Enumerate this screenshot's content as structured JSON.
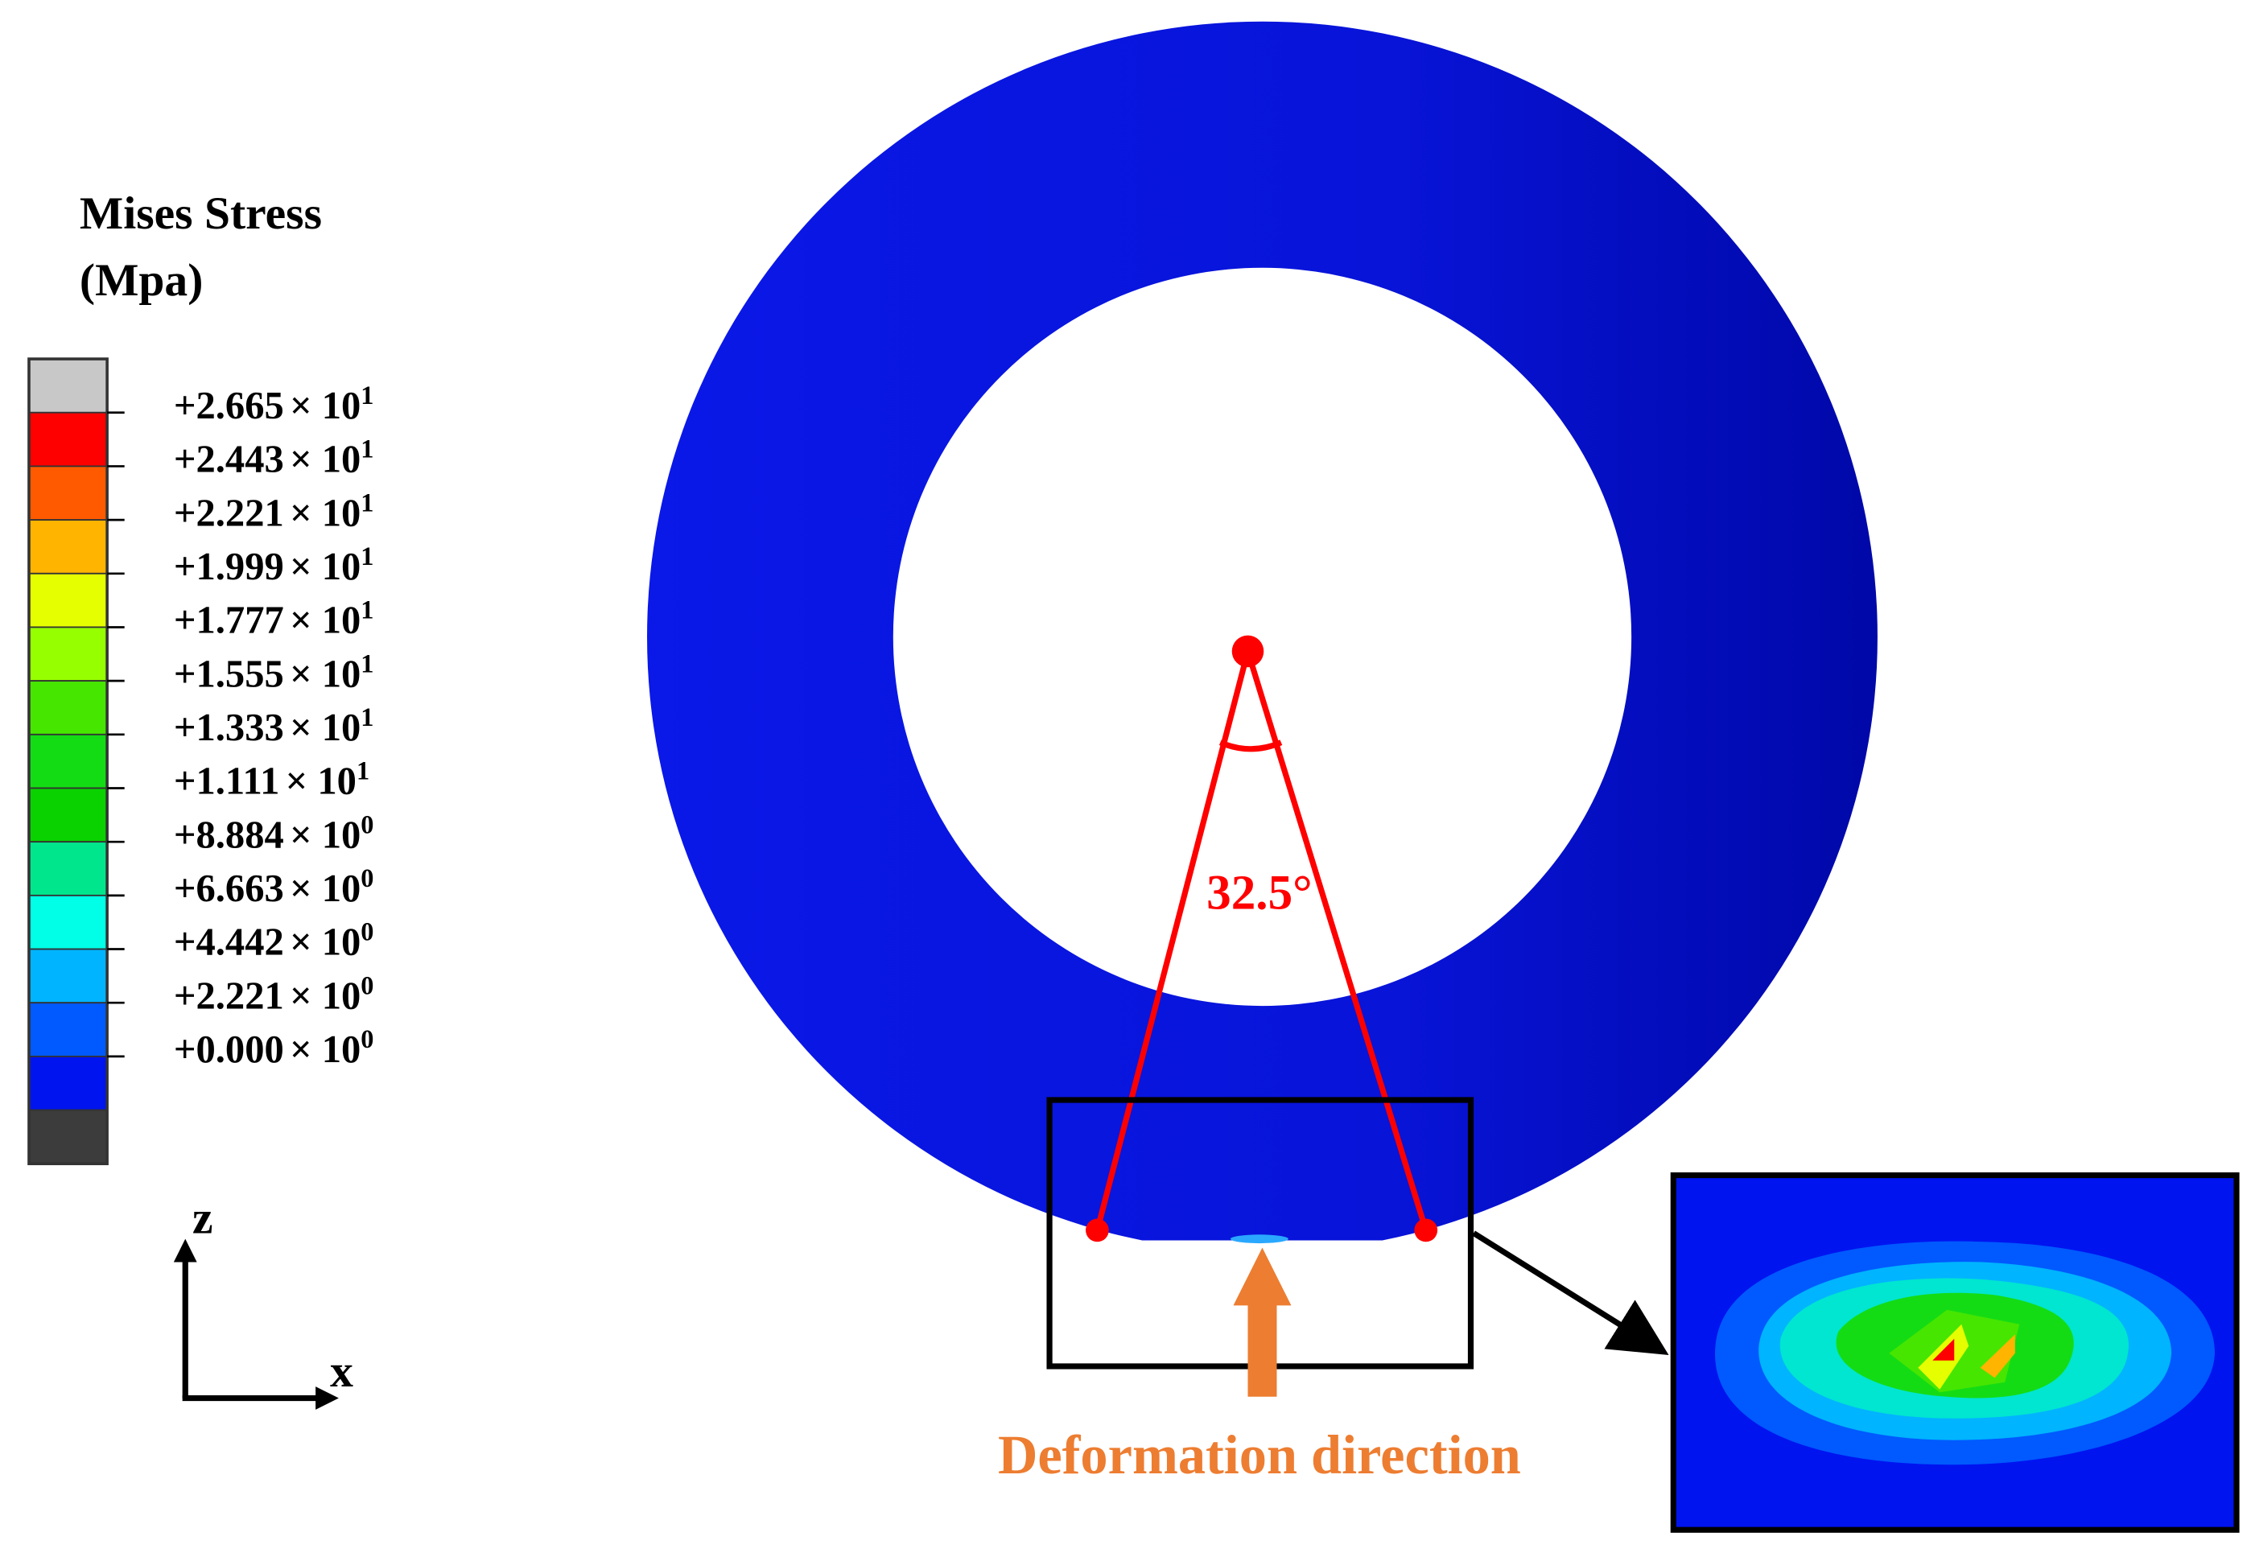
{
  "legend": {
    "title": "Mises Stress",
    "unit": "(Mpa)",
    "colors": [
      "#c8c8c8",
      "#ff0000",
      "#ff5a00",
      "#ffb400",
      "#e6ff00",
      "#96ff00",
      "#46e600",
      "#14dc14",
      "#0ad200",
      "#00e68c",
      "#00ffe6",
      "#00b4ff",
      "#005aff",
      "#0014f0",
      "#3c3c3c"
    ],
    "labels": [
      {
        "mantissa": "+2.665",
        "times": "× 10",
        "exponent": "1"
      },
      {
        "mantissa": "+2.443",
        "times": "× 10",
        "exponent": "1"
      },
      {
        "mantissa": "+2.221",
        "times": "× 10",
        "exponent": "1"
      },
      {
        "mantissa": "+1.999",
        "times": "× 10",
        "exponent": "1"
      },
      {
        "mantissa": "+1.777",
        "times": "× 10",
        "exponent": "1"
      },
      {
        "mantissa": "+1.555",
        "times": "× 10",
        "exponent": "1"
      },
      {
        "mantissa": "+1.333",
        "times": "× 10",
        "exponent": "1"
      },
      {
        "mantissa": "+1.111",
        "times": "× 10",
        "exponent": "1"
      },
      {
        "mantissa": "+8.884",
        "times": "× 10",
        "exponent": "0"
      },
      {
        "mantissa": "+6.663",
        "times": "× 10",
        "exponent": "0"
      },
      {
        "mantissa": "+4.442",
        "times": "× 10",
        "exponent": "0"
      },
      {
        "mantissa": "+2.221",
        "times": "× 10",
        "exponent": "0"
      },
      {
        "mantissa": "+0.000",
        "times": "× 10",
        "exponent": "0"
      }
    ]
  },
  "axes": {
    "vertical": "z",
    "horizontal": "x"
  },
  "annotations": {
    "angle": "32.5°",
    "direction": "Deformation direction"
  }
}
